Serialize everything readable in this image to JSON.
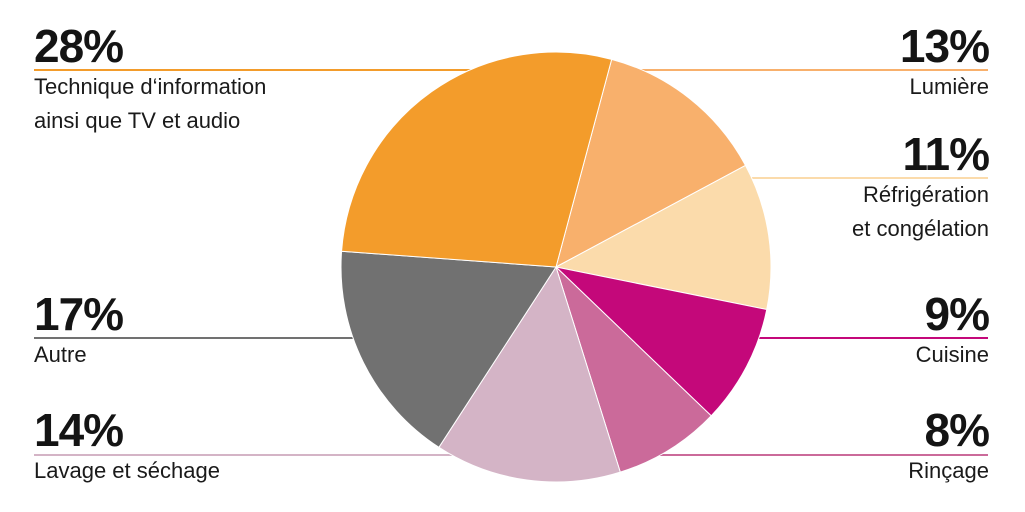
{
  "chart_data": {
    "type": "pie",
    "title": "",
    "slices": [
      {
        "label": "Lumière",
        "value": 13,
        "display": "13%",
        "color": "#F8B06C"
      },
      {
        "label": "Réfrigération\net congélation",
        "value": 11,
        "display": "11%",
        "color": "#FBDBAB"
      },
      {
        "label": "Cuisine",
        "value": 9,
        "display": "9%",
        "color": "#C4087A"
      },
      {
        "label": "Rinçage",
        "value": 8,
        "display": "8%",
        "color": "#CB6A9A"
      },
      {
        "label": "Lavage et séchage",
        "value": 14,
        "display": "14%",
        "color": "#D4B4C6"
      },
      {
        "label": "Autre",
        "value": 17,
        "display": "17%",
        "color": "#717171"
      },
      {
        "label": "Technique d‘information\nainsi que TV et audio",
        "value": 28,
        "display": "28%",
        "color": "#F39C2B"
      }
    ]
  }
}
